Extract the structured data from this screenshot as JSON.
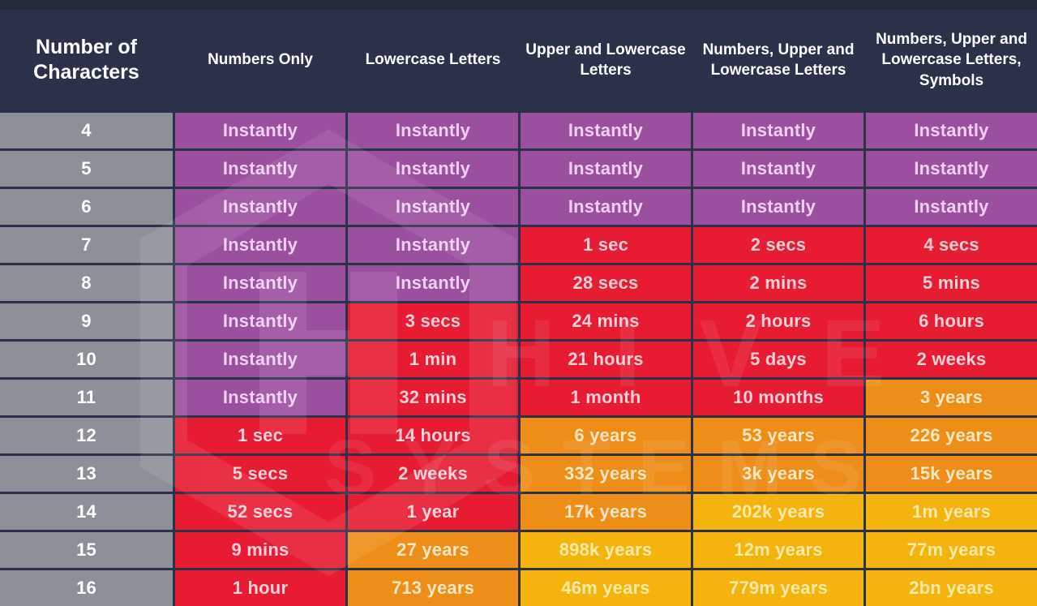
{
  "colors": {
    "navy_background": "#2b3148",
    "top_strip": "#262b3b",
    "levels": {
      "gray": {
        "bg": "#8e9099",
        "fg": "#ffffff"
      },
      "purple": {
        "bg": "#9b4f9f",
        "fg": "#f0d0f0"
      },
      "red": {
        "bg": "#e71b32",
        "fg": "#fbd0d8"
      },
      "orange": {
        "bg": "#ee8d17",
        "fg": "#fde8c3"
      },
      "yellow": {
        "bg": "#f5b40d",
        "fg": "#fcetaa7"
      }
    }
  },
  "watermark": {
    "line1": "HIVE",
    "line2": "SYSTEMS"
  },
  "chart_data": {
    "type": "table",
    "columns": [
      "Number of Characters",
      "Numbers Only",
      "Lowercase Letters",
      "Upper and Lowercase Letters",
      "Numbers, Upper and Lowercase Letters",
      "Numbers, Upper and Lowercase Letters, Symbols"
    ],
    "rows": [
      {
        "characters": "4",
        "values": [
          "Instantly",
          "Instantly",
          "Instantly",
          "Instantly",
          "Instantly"
        ],
        "levels": [
          "purple",
          "purple",
          "purple",
          "purple",
          "purple"
        ]
      },
      {
        "characters": "5",
        "values": [
          "Instantly",
          "Instantly",
          "Instantly",
          "Instantly",
          "Instantly"
        ],
        "levels": [
          "purple",
          "purple",
          "purple",
          "purple",
          "purple"
        ]
      },
      {
        "characters": "6",
        "values": [
          "Instantly",
          "Instantly",
          "Instantly",
          "Instantly",
          "Instantly"
        ],
        "levels": [
          "purple",
          "purple",
          "purple",
          "purple",
          "purple"
        ]
      },
      {
        "characters": "7",
        "values": [
          "Instantly",
          "Instantly",
          "1 sec",
          "2 secs",
          "4 secs"
        ],
        "levels": [
          "purple",
          "purple",
          "red",
          "red",
          "red"
        ]
      },
      {
        "characters": "8",
        "values": [
          "Instantly",
          "Instantly",
          "28 secs",
          "2 mins",
          "5 mins"
        ],
        "levels": [
          "purple",
          "purple",
          "red",
          "red",
          "red"
        ]
      },
      {
        "characters": "9",
        "values": [
          "Instantly",
          "3 secs",
          "24 mins",
          "2 hours",
          "6 hours"
        ],
        "levels": [
          "purple",
          "red",
          "red",
          "red",
          "red"
        ]
      },
      {
        "characters": "10",
        "values": [
          "Instantly",
          "1 min",
          "21 hours",
          "5 days",
          "2 weeks"
        ],
        "levels": [
          "purple",
          "red",
          "red",
          "red",
          "red"
        ]
      },
      {
        "characters": "11",
        "values": [
          "Instantly",
          "32 mins",
          "1 month",
          "10 months",
          "3 years"
        ],
        "levels": [
          "purple",
          "red",
          "red",
          "red",
          "orange"
        ]
      },
      {
        "characters": "12",
        "values": [
          "1 sec",
          "14 hours",
          "6 years",
          "53 years",
          "226 years"
        ],
        "levels": [
          "red",
          "red",
          "orange",
          "orange",
          "orange"
        ]
      },
      {
        "characters": "13",
        "values": [
          "5 secs",
          "2 weeks",
          "332 years",
          "3k years",
          "15k years"
        ],
        "levels": [
          "red",
          "red",
          "orange",
          "orange",
          "orange"
        ]
      },
      {
        "characters": "14",
        "values": [
          "52 secs",
          "1 year",
          "17k years",
          "202k years",
          "1m years"
        ],
        "levels": [
          "red",
          "red",
          "orange",
          "yellow",
          "yellow"
        ]
      },
      {
        "characters": "15",
        "values": [
          "9 mins",
          "27 years",
          "898k years",
          "12m years",
          "77m years"
        ],
        "levels": [
          "red",
          "orange",
          "yellow",
          "yellow",
          "yellow"
        ]
      },
      {
        "characters": "16",
        "values": [
          "1 hour",
          "713 years",
          "46m years",
          "779m years",
          "2bn years"
        ],
        "levels": [
          "red",
          "orange",
          "yellow",
          "yellow",
          "yellow"
        ]
      }
    ]
  }
}
